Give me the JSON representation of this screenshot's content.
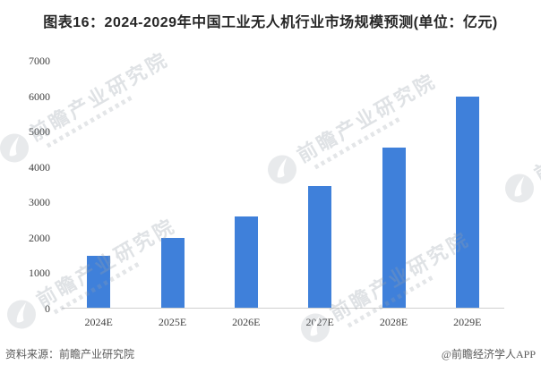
{
  "title": "图表16：2024-2029年中国工业无人机行业市场规模预测(单位：亿元)",
  "chart_data": {
    "type": "bar",
    "title": "2024-2029年中国工业无人机行业市场规模预测",
    "unit": "亿元",
    "categories": [
      "2024E",
      "2025E",
      "2026E",
      "2027E",
      "2028E",
      "2029E"
    ],
    "values": [
      1500,
      2000,
      2600,
      3450,
      4550,
      6000
    ],
    "ylim": [
      0,
      7000
    ],
    "yticks": [
      0,
      1000,
      2000,
      3000,
      4000,
      5000,
      6000,
      7000
    ],
    "grid": false,
    "legend": false,
    "bar_color": "#3f80da",
    "axis_line_color": "#cfcfcf"
  },
  "watermark": {
    "text": "前瞻产业研究院"
  },
  "footer": {
    "source": "资料来源：前瞻产业研究院",
    "credit": "@前瞻经济学人APP"
  }
}
